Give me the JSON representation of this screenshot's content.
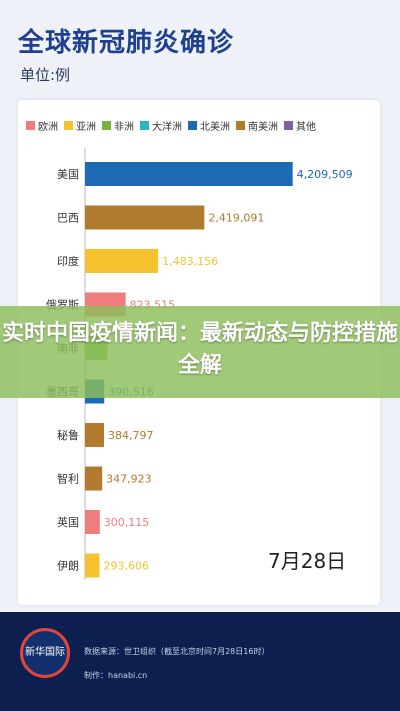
{
  "header": {
    "title": "全球新冠肺炎确诊",
    "unit": "单位:例"
  },
  "legend": [
    {
      "label": "欧洲",
      "color": "#ee7e7e"
    },
    {
      "label": "亚洲",
      "color": "#f6c32f"
    },
    {
      "label": "非洲",
      "color": "#79b443"
    },
    {
      "label": "大洋洲",
      "color": "#2bb7c2"
    },
    {
      "label": "北美洲",
      "color": "#1d69b3"
    },
    {
      "label": "南美洲",
      "color": "#b27a2e"
    },
    {
      "label": "其他",
      "color": "#7f5fa5"
    }
  ],
  "chart_data": {
    "type": "bar",
    "orientation": "horizontal",
    "title": "全球新冠肺炎确诊",
    "unit": "单位:例",
    "date": "7月28日",
    "categories": [
      "美国",
      "巴西",
      "印度",
      "俄罗斯",
      "南非",
      "墨西哥",
      "秘鲁",
      "智利",
      "英国",
      "伊朗"
    ],
    "values": [
      4209509,
      2419091,
      1483156,
      823515,
      452529,
      390516,
      384797,
      347923,
      300115,
      293606
    ],
    "value_labels": [
      "4,209,509",
      "2,419,091",
      "1,483,156",
      "823,515",
      "",
      "390,516",
      "384,797",
      "347,923",
      "300,115",
      "293,606"
    ],
    "region_colors": [
      "#1d69b3",
      "#b27a2e",
      "#f6c32f",
      "#ee7e7e",
      "#79b443",
      "#1d69b3",
      "#b27a2e",
      "#b27a2e",
      "#ee7e7e",
      "#f6c32f"
    ],
    "xlim": [
      0,
      4500000
    ]
  },
  "overlay": {
    "headline": "实时中国疫情新闻：最新动态与防控措施全解"
  },
  "footer": {
    "logo_text": "新华国际",
    "source": "数据来源：世卫组织（截至北京时间7月28日16时）",
    "producer": "制作：hanabi.cn"
  }
}
